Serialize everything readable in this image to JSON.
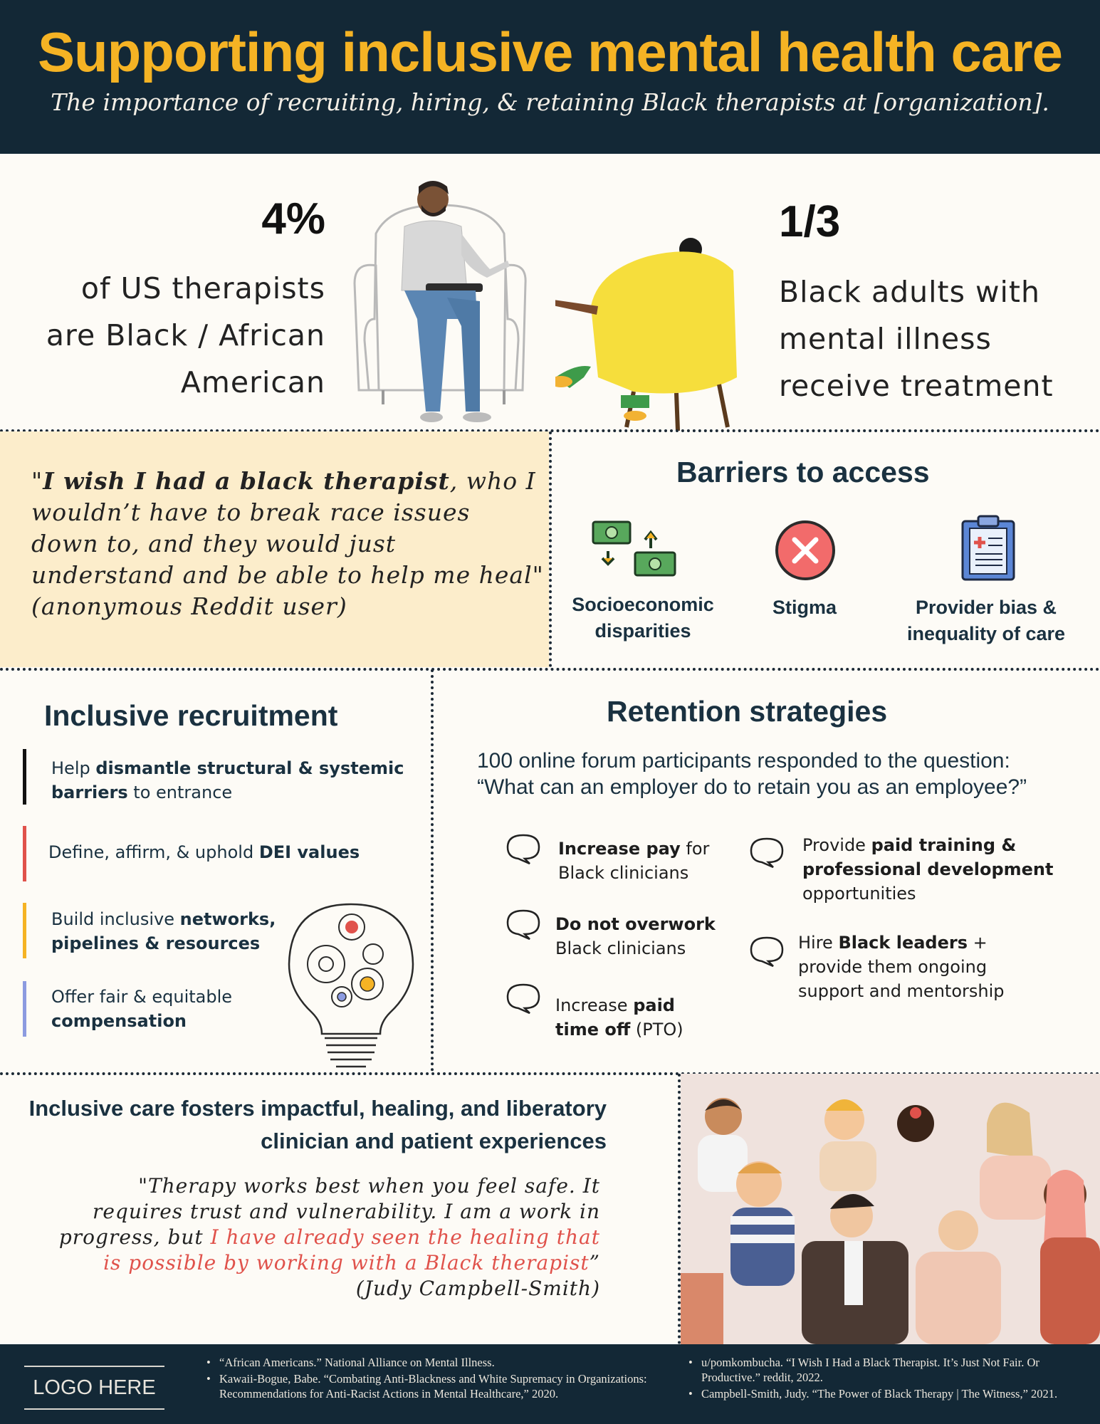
{
  "header": {
    "title": "Supporting inclusive mental health care",
    "subtitle": "The importance of recruiting, hiring, & retaining Black therapists at [organization]."
  },
  "stats": {
    "left": {
      "value": "4%",
      "lines": [
        "of US therapists",
        "are Black / African",
        "American"
      ]
    },
    "right": {
      "value": "1/3",
      "lines": [
        "Black adults with",
        "mental illness",
        "receive treatment"
      ]
    }
  },
  "quote1": {
    "open": "\"",
    "bold": "I wish I had a black therapist",
    "rest": ", who I wouldn’t have to break race issues down to, and they would just understand and be able to help me heal\" (anonymous Reddit user)"
  },
  "barriers": {
    "heading": "Barriers to access",
    "items": [
      {
        "icon": "money-exchange-icon",
        "line1": "Socioeconomic",
        "line2": "disparities"
      },
      {
        "icon": "x-circle-icon",
        "line1": "Stigma",
        "line2": ""
      },
      {
        "icon": "medical-clipboard-icon",
        "line1": "Provider bias &",
        "line2": "inequality of care"
      }
    ]
  },
  "recruitment": {
    "heading": "Inclusive recruitment",
    "items": [
      {
        "color": "#111111",
        "pre": "Help ",
        "bold": "dismantle structural & systemic barriers",
        "post": " to entrance"
      },
      {
        "color": "#e0524b",
        "pre": "Define, affirm, & uphold ",
        "bold": "DEI values",
        "post": ""
      },
      {
        "color": "#f5b324",
        "pre": "Build inclusive ",
        "bold": "networks, pipelines & resources",
        "post": ""
      },
      {
        "color": "#8c9be0",
        "pre": "Offer fair & equitable ",
        "bold": "compensation",
        "post": ""
      }
    ]
  },
  "retention": {
    "heading": "Retention strategies",
    "intro_line1": "100 online forum participants responded to the question:",
    "intro_line2": "“What can an employer do to retain you as an employee?”",
    "items": [
      {
        "bold": "Increase pay",
        "post": " for Black clinicians",
        "pre": ""
      },
      {
        "bold": "Do not overwork",
        "post": " Black clinicians",
        "pre": ""
      },
      {
        "pre": "Increase ",
        "bold": "paid time off",
        "post": " (PTO)"
      },
      {
        "pre": "Provide ",
        "bold": "paid training & professional development",
        "post": " opportunities"
      },
      {
        "pre": "Hire ",
        "bold": "Black leaders",
        "post": " + provide them ongoing support and mentorship"
      }
    ]
  },
  "bottom": {
    "heading_line1": "Inclusive care  fosters impactful, healing, and liberatory",
    "heading_line2": "clinician and patient experiences",
    "quote_pre": "\"Therapy works best when you feel safe. It requires trust and vulnerability. I am a work in progress, but ",
    "quote_red": "I have already seen the healing that is possible by working with a Black therapist",
    "quote_post": "” (Judy Campbell-Smith)"
  },
  "footer": {
    "logo": "LOGO HERE",
    "refs_left": [
      "“African Americans.” National Alliance on Mental Illness.",
      "Kawaii-Bogue, Babe. “Combating Anti-Blackness and White Supremacy in Organizations: Recommendations for Anti-Racist Actions in Mental Healthcare,” 2020."
    ],
    "refs_right": [
      "u/pomkombucha. “I Wish I Had a Black Therapist. It’s Just Not Fair. Or Productive.” reddit, 2022.",
      "Campbell-Smith, Judy. “The Power of Black Therapy | The Witness,” 2021."
    ]
  },
  "colors": {
    "navy": "#132836",
    "gold": "#f5b324",
    "cream": "#fcedcb",
    "red": "#e0524b",
    "periwinkle": "#8c9be0"
  }
}
